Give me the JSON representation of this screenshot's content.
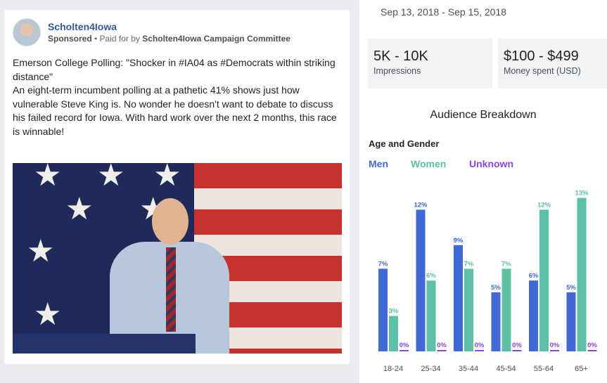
{
  "post": {
    "page_name": "Scholten4Iowa",
    "sponsored": "Sponsored",
    "paid_prefix": " • Paid for by ",
    "payer": "Scholten4Iowa Campaign Committee",
    "text_line1": "Emerson College Polling: \"Shocker in #IA04 as #Democrats within striking distance\"",
    "text_line2": "An eight-term incumbent polling at a pathetic 41% shows just how vulnerable Steve King is. No wonder he doesn't want to debate to discuss his failed record for Iowa. With hard work over the next 2 months, this race is winnable!"
  },
  "panel": {
    "date_range": "Sep 13, 2018 - Sep 15, 2018",
    "impressions_value": "5K - 10K",
    "impressions_label": "Impressions",
    "spent_value": "$100 - $499",
    "spent_label": "Money spent (USD)",
    "breakdown_title": "Audience Breakdown",
    "section_title": "Age and Gender"
  },
  "colors": {
    "men": "#4169d6",
    "women": "#5bc0a5",
    "unknown": "#8e44d8"
  },
  "chart_data": {
    "type": "bar",
    "title": "Age and Gender",
    "categories": [
      "18-24",
      "25-34",
      "35-44",
      "45-54",
      "55-64",
      "65+"
    ],
    "series": [
      {
        "name": "Men",
        "values": [
          7,
          12,
          9,
          5,
          6,
          5
        ]
      },
      {
        "name": "Women",
        "values": [
          3,
          6,
          7,
          7,
          12,
          13
        ]
      },
      {
        "name": "Unknown",
        "values": [
          0,
          0,
          0,
          0,
          0,
          0
        ]
      }
    ],
    "legend": "top-left",
    "unit": "%"
  }
}
